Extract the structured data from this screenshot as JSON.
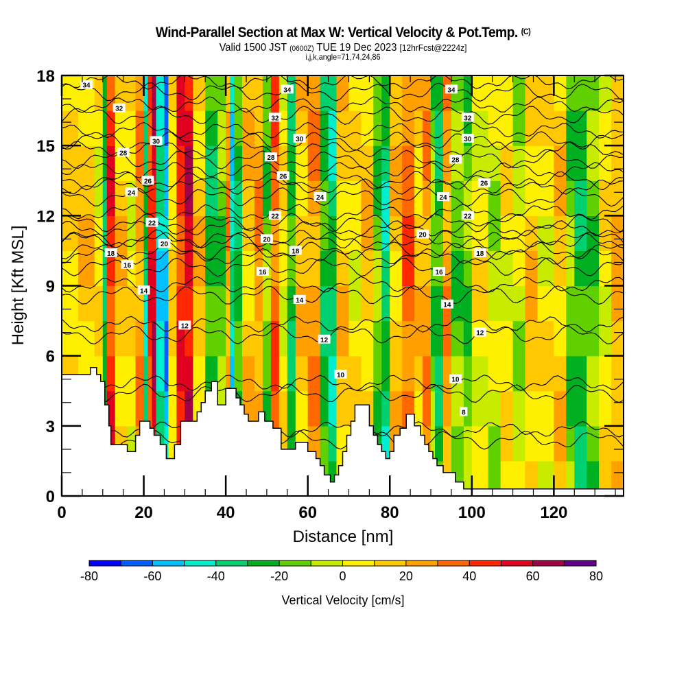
{
  "header": {
    "title": "Wind-Parallel Section at Max W: Vertical Velocity & Pot.Temp.",
    "copyright": "(C)",
    "valid_prefix": "Valid 1500 JST",
    "valid_utc": "(0600Z)",
    "valid_date": "TUE 19 Dec 2023",
    "forecast": "[12hrFcst@2224z]",
    "indices": "i,j,k,angle=71,74,24,86"
  },
  "chart_data": {
    "type": "heatmap",
    "title": "Wind-Parallel Section at Max W: Vertical Velocity & Pot.Temp.",
    "xlabel": "Distance [nm]",
    "ylabel": "Height [Kft MSL]",
    "xlim": [
      0,
      137
    ],
    "ylim": [
      0,
      18
    ],
    "xticks": [
      "0",
      "20",
      "40",
      "60",
      "80",
      "100",
      "120"
    ],
    "xtick_values": [
      0,
      20,
      40,
      60,
      80,
      100,
      120
    ],
    "yticks": [
      "0",
      "3",
      "6",
      "9",
      "12",
      "15",
      "18"
    ],
    "ytick_values": [
      0,
      3,
      6,
      9,
      12,
      15,
      18
    ],
    "colorbar": {
      "title": "Vertical Velocity [cm/s]",
      "tick_labels": [
        "-80",
        "-60",
        "-40",
        "-20",
        "0",
        "20",
        "40",
        "60",
        "80"
      ],
      "bounds": [
        -80,
        80
      ],
      "step": 10,
      "colors": [
        "#0000ff",
        "#0060ff",
        "#00c0ff",
        "#00eed0",
        "#00d070",
        "#00b020",
        "#60d000",
        "#c8ec00",
        "#fff000",
        "#ffc800",
        "#ffa000",
        "#ff6800",
        "#ff2800",
        "#e00020",
        "#a00048",
        "#600088"
      ]
    },
    "w_columns": [
      {
        "x": 0,
        "w": 10
      },
      {
        "x": 4,
        "w": 15
      },
      {
        "x": 8,
        "w": 5
      },
      {
        "x": 10,
        "w": -30
      },
      {
        "x": 11,
        "w": 45
      },
      {
        "x": 13,
        "w": 15
      },
      {
        "x": 16,
        "w": 5
      },
      {
        "x": 18,
        "w": 25
      },
      {
        "x": 20,
        "w": -35
      },
      {
        "x": 21,
        "w": 45
      },
      {
        "x": 22,
        "w": 55
      },
      {
        "x": 23,
        "w": -45
      },
      {
        "x": 25,
        "w": -55
      },
      {
        "x": 26,
        "w": 10
      },
      {
        "x": 28,
        "w": 45
      },
      {
        "x": 30,
        "w": 55
      },
      {
        "x": 32,
        "w": 15
      },
      {
        "x": 35,
        "w": -25
      },
      {
        "x": 38,
        "w": -15
      },
      {
        "x": 40,
        "w": 25
      },
      {
        "x": 41,
        "w": -45
      },
      {
        "x": 42,
        "w": -25
      },
      {
        "x": 44,
        "w": 15
      },
      {
        "x": 47,
        "w": 25
      },
      {
        "x": 49,
        "w": -15
      },
      {
        "x": 51,
        "w": 35
      },
      {
        "x": 53,
        "w": 5
      },
      {
        "x": 55,
        "w": -25
      },
      {
        "x": 57,
        "w": 15
      },
      {
        "x": 60,
        "w": 25
      },
      {
        "x": 63,
        "w": -25
      },
      {
        "x": 65,
        "w": -35
      },
      {
        "x": 67,
        "w": 15
      },
      {
        "x": 70,
        "w": 5
      },
      {
        "x": 73,
        "w": 15
      },
      {
        "x": 76,
        "w": -15
      },
      {
        "x": 78,
        "w": -35
      },
      {
        "x": 80,
        "w": 15
      },
      {
        "x": 83,
        "w": 35
      },
      {
        "x": 86,
        "w": 15
      },
      {
        "x": 88,
        "w": 25
      },
      {
        "x": 90,
        "w": -15
      },
      {
        "x": 91,
        "w": -25
      },
      {
        "x": 93,
        "w": 25
      },
      {
        "x": 95,
        "w": -15
      },
      {
        "x": 98,
        "w": -15
      },
      {
        "x": 100,
        "w": 5
      },
      {
        "x": 104,
        "w": -5
      },
      {
        "x": 107,
        "w": 5
      },
      {
        "x": 110,
        "w": -5
      },
      {
        "x": 113,
        "w": 15
      },
      {
        "x": 116,
        "w": 5
      },
      {
        "x": 120,
        "w": 15
      },
      {
        "x": 123,
        "w": -15
      },
      {
        "x": 125,
        "w": -25
      },
      {
        "x": 128,
        "w": -15
      },
      {
        "x": 131,
        "w": 5
      },
      {
        "x": 134,
        "w": 20
      }
    ],
    "terrain_kft": [
      [
        0,
        5.2
      ],
      [
        7,
        5.2
      ],
      [
        7,
        5.5
      ],
      [
        8.5,
        5.5
      ],
      [
        8.5,
        5.2
      ],
      [
        9.5,
        5.2
      ],
      [
        9.5,
        4.9
      ],
      [
        10.5,
        4.9
      ],
      [
        10.5,
        3.9
      ],
      [
        11.5,
        3.9
      ],
      [
        11.5,
        3.0
      ],
      [
        12,
        3.0
      ],
      [
        12,
        2.2
      ],
      [
        16,
        2.2
      ],
      [
        16,
        1.9
      ],
      [
        18,
        1.9
      ],
      [
        18,
        2.6
      ],
      [
        19,
        2.6
      ],
      [
        19,
        3.2
      ],
      [
        21.5,
        3.2
      ],
      [
        21.5,
        2.9
      ],
      [
        22.5,
        2.9
      ],
      [
        22.5,
        2.6
      ],
      [
        24,
        2.6
      ],
      [
        24,
        2.2
      ],
      [
        25.5,
        2.2
      ],
      [
        25.5,
        1.6
      ],
      [
        27.5,
        1.6
      ],
      [
        27.5,
        2.2
      ],
      [
        29,
        2.2
      ],
      [
        29,
        3.2
      ],
      [
        33,
        3.2
      ],
      [
        33,
        3.6
      ],
      [
        34,
        3.6
      ],
      [
        34,
        4.0
      ],
      [
        35,
        4.0
      ],
      [
        35,
        4.5
      ],
      [
        36.5,
        4.5
      ],
      [
        36.5,
        4.9
      ],
      [
        38,
        4.9
      ],
      [
        38,
        3.9
      ],
      [
        40,
        3.9
      ],
      [
        40,
        4.6
      ],
      [
        42.5,
        4.6
      ],
      [
        42.5,
        4.2
      ],
      [
        43.5,
        4.2
      ],
      [
        43.5,
        3.9
      ],
      [
        44.5,
        3.9
      ],
      [
        44.5,
        3.5
      ],
      [
        45.5,
        3.5
      ],
      [
        45.5,
        3.2
      ],
      [
        48,
        3.2
      ],
      [
        48,
        3.6
      ],
      [
        49.5,
        3.6
      ],
      [
        49.5,
        3.2
      ],
      [
        51.5,
        3.2
      ],
      [
        51.5,
        2.9
      ],
      [
        53.5,
        2.9
      ],
      [
        53.5,
        2.0
      ],
      [
        57,
        2.0
      ],
      [
        57,
        2.3
      ],
      [
        60,
        2.3
      ],
      [
        60,
        1.9
      ],
      [
        62,
        1.9
      ],
      [
        62,
        1.6
      ],
      [
        63,
        1.6
      ],
      [
        63,
        1.3
      ],
      [
        64,
        1.3
      ],
      [
        64,
        0.9
      ],
      [
        65.5,
        0.9
      ],
      [
        65.5,
        0.6
      ],
      [
        66.5,
        0.6
      ],
      [
        66.5,
        0.9
      ],
      [
        67.5,
        0.9
      ],
      [
        67.5,
        1.3
      ],
      [
        68.5,
        1.3
      ],
      [
        68.5,
        1.9
      ],
      [
        69.5,
        1.9
      ],
      [
        69.5,
        2.6
      ],
      [
        70.5,
        2.6
      ],
      [
        70.5,
        3.2
      ],
      [
        71.5,
        3.2
      ],
      [
        71.5,
        3.9
      ],
      [
        75,
        3.9
      ],
      [
        75,
        3.0
      ],
      [
        76,
        3.0
      ],
      [
        76,
        2.6
      ],
      [
        77,
        2.6
      ],
      [
        77,
        2.2
      ],
      [
        78,
        2.2
      ],
      [
        78,
        1.9
      ],
      [
        79,
        1.9
      ],
      [
        79,
        1.6
      ],
      [
        80,
        1.6
      ],
      [
        80,
        1.9
      ],
      [
        81,
        1.9
      ],
      [
        81,
        2.6
      ],
      [
        82.5,
        2.6
      ],
      [
        82.5,
        2.9
      ],
      [
        84,
        2.9
      ],
      [
        84,
        3.5
      ],
      [
        86,
        3.5
      ],
      [
        86,
        3.0
      ],
      [
        87.5,
        3.0
      ],
      [
        87.5,
        2.6
      ],
      [
        88.5,
        2.6
      ],
      [
        88.5,
        2.2
      ],
      [
        89.5,
        2.2
      ],
      [
        89.5,
        1.9
      ],
      [
        90.5,
        1.9
      ],
      [
        90.5,
        1.6
      ],
      [
        91.5,
        1.6
      ],
      [
        91.5,
        1.3
      ],
      [
        93,
        1.3
      ],
      [
        93,
        1.0
      ],
      [
        96,
        1.0
      ],
      [
        96,
        0.6
      ],
      [
        98,
        0.6
      ],
      [
        98,
        0.3
      ],
      [
        137,
        0.3
      ]
    ],
    "theta_contours": [
      {
        "label": "8",
        "base": 2.4,
        "label_at": [
          98,
          3.6
        ]
      },
      {
        "label": "10",
        "base": 4.4,
        "label_at": [
          68,
          5.2
        ],
        "label2_at": [
          96,
          5.0
        ]
      },
      {
        "label": "12",
        "base": 6.9,
        "label_at": [
          30,
          7.3
        ],
        "label2_at": [
          64,
          6.7
        ],
        "label3_at": [
          102,
          7.0
        ]
      },
      {
        "label": "14",
        "base": 8.6,
        "label_at": [
          20,
          8.8
        ],
        "label2_at": [
          58,
          8.4
        ],
        "label3_at": [
          94,
          8.2
        ]
      },
      {
        "label": "16",
        "base": 9.8,
        "label_at": [
          16,
          9.9
        ],
        "label2_at": [
          49,
          9.6
        ],
        "label3_at": [
          92,
          9.6
        ]
      },
      {
        "label": "18",
        "base": 10.5,
        "label_at": [
          12,
          10.4
        ],
        "label2_at": [
          57,
          10.5
        ],
        "label3_at": [
          102,
          10.4
        ]
      },
      {
        "label": "20",
        "base": 11.0,
        "label_at": [
          25,
          10.8
        ],
        "label2_at": [
          50,
          11.0
        ],
        "label3_at": [
          88,
          11.2
        ]
      },
      {
        "label": "22",
        "base": 11.7,
        "label_at": [
          22,
          11.7
        ],
        "label2_at": [
          52,
          12.0
        ],
        "label3_at": [
          99,
          12.0
        ]
      },
      {
        "label": "24",
        "base": 12.8,
        "label_at": [
          17,
          13.0
        ],
        "label2_at": [
          63,
          12.8
        ],
        "label3_at": [
          93,
          12.8
        ]
      },
      {
        "label": "26",
        "base": 13.5,
        "label_at": [
          21,
          13.5
        ],
        "label2_at": [
          54,
          13.7
        ],
        "label3_at": [
          103,
          13.4
        ]
      },
      {
        "label": "28",
        "base": 14.4,
        "label_at": [
          15,
          14.7
        ],
        "label2_at": [
          51,
          14.5
        ],
        "label3_at": [
          96,
          14.4
        ]
      },
      {
        "label": "30",
        "base": 15.2,
        "label_at": [
          23,
          15.2
        ],
        "label2_at": [
          58,
          15.3
        ],
        "label3_at": [
          99,
          15.3
        ]
      },
      {
        "label": "32",
        "base": 16.3,
        "label_at": [
          14,
          16.6
        ],
        "label2_at": [
          52,
          16.2
        ],
        "label3_at": [
          99,
          16.2
        ]
      },
      {
        "label": "34",
        "base": 17.3,
        "label_at": [
          6,
          17.6
        ],
        "label2_at": [
          55,
          17.4
        ],
        "label3_at": [
          95,
          17.4
        ]
      }
    ]
  }
}
